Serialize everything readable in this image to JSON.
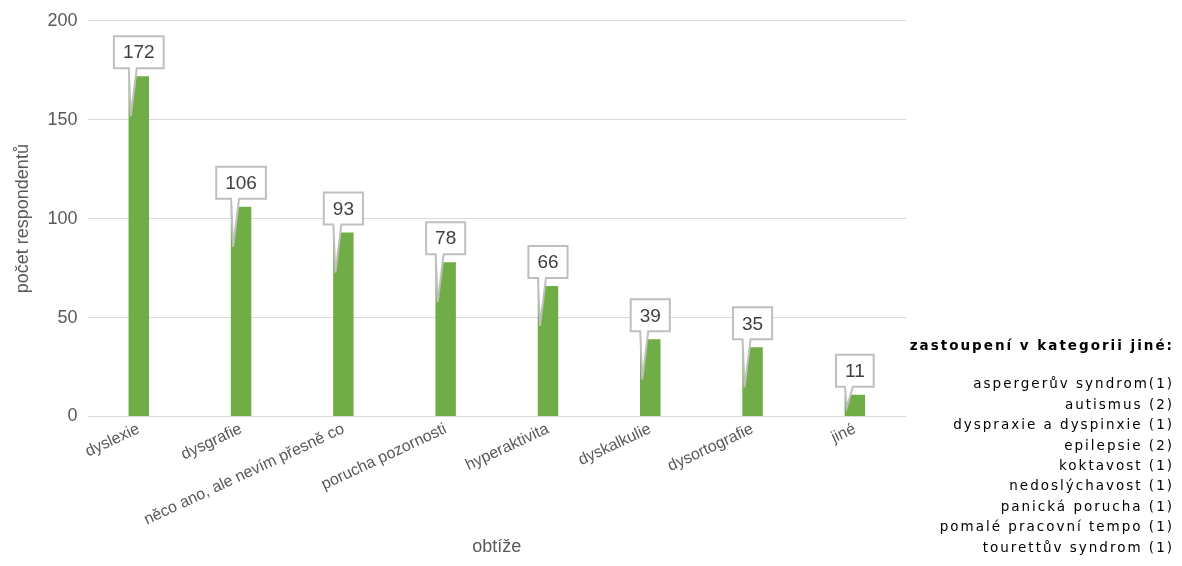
{
  "chart_data": {
    "type": "bar",
    "xlabel": "obtíže",
    "ylabel": "počet respondentů",
    "categories": [
      "dyslexie",
      "dysgrafie",
      "něco ano, ale nevím přesně co",
      "porucha pozornosti",
      "hyperaktivita",
      "dyskalkulie",
      "dysortografie",
      "jiné"
    ],
    "series": [
      {
        "color": "#70ad47",
        "values": [
          172,
          106,
          93,
          78,
          66,
          39,
          35,
          11
        ]
      }
    ],
    "ylim": [
      0,
      200
    ],
    "yticks": [
      0,
      50,
      100,
      150,
      200
    ],
    "grid": "y",
    "legend": false,
    "data_labels": true,
    "annotations": [
      "zastoupení v kategorii jiné:",
      "aspergerův syndrom(1)",
      "autismus (2)",
      "dyspraxie a dyspinxie (1)",
      "epilepsie (2)",
      "koktavost (1)",
      "nedoslýchavost (1)",
      "panická porucha (1)",
      "pomalé pracovní tempo (1)",
      "tourettův syndrom (1)"
    ]
  }
}
